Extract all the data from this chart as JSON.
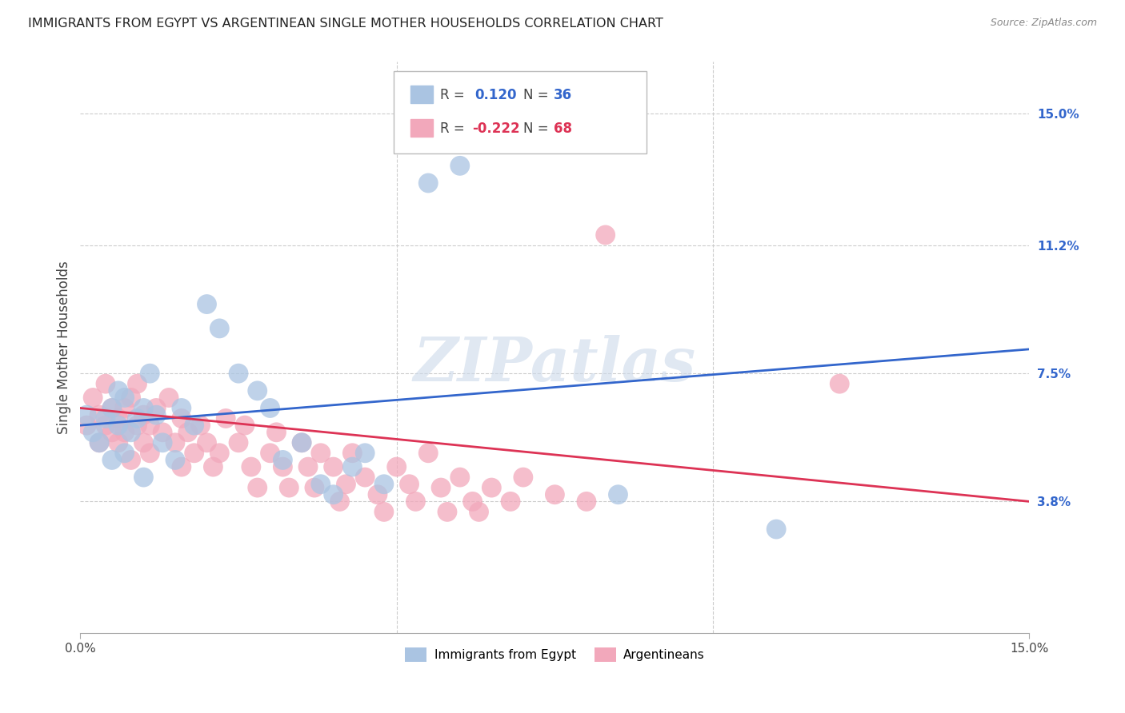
{
  "title": "IMMIGRANTS FROM EGYPT VS ARGENTINEAN SINGLE MOTHER HOUSEHOLDS CORRELATION CHART",
  "source": "Source: ZipAtlas.com",
  "ylabel": "Single Mother Households",
  "xlim": [
    0.0,
    0.15
  ],
  "ylim": [
    0.0,
    0.165
  ],
  "yticks": [
    0.038,
    0.075,
    0.112,
    0.15
  ],
  "ytick_labels": [
    "3.8%",
    "7.5%",
    "11.2%",
    "15.0%"
  ],
  "xtick_labels": [
    "0.0%",
    "15.0%"
  ],
  "blue_R": "0.120",
  "blue_N": "36",
  "pink_R": "-0.222",
  "pink_N": "68",
  "blue_color": "#aac4e2",
  "pink_color": "#f2a8bb",
  "blue_line_color": "#3366cc",
  "pink_line_color": "#dd3355",
  "watermark": "ZIPatlas",
  "blue_legend_label": "Immigrants from Egypt",
  "pink_legend_label": "Argentineans",
  "blue_points_x": [
    0.001,
    0.002,
    0.003,
    0.004,
    0.005,
    0.005,
    0.006,
    0.006,
    0.007,
    0.007,
    0.008,
    0.009,
    0.01,
    0.01,
    0.011,
    0.012,
    0.013,
    0.015,
    0.016,
    0.018,
    0.02,
    0.022,
    0.025,
    0.028,
    0.03,
    0.032,
    0.035,
    0.038,
    0.04,
    0.043,
    0.045,
    0.048,
    0.055,
    0.06,
    0.085,
    0.11
  ],
  "blue_points_y": [
    0.063,
    0.058,
    0.055,
    0.062,
    0.05,
    0.065,
    0.06,
    0.07,
    0.052,
    0.068,
    0.058,
    0.062,
    0.065,
    0.045,
    0.075,
    0.063,
    0.055,
    0.05,
    0.065,
    0.06,
    0.095,
    0.088,
    0.075,
    0.07,
    0.065,
    0.05,
    0.055,
    0.043,
    0.04,
    0.048,
    0.052,
    0.043,
    0.13,
    0.135,
    0.04,
    0.03
  ],
  "pink_points_x": [
    0.001,
    0.002,
    0.003,
    0.003,
    0.004,
    0.004,
    0.005,
    0.005,
    0.006,
    0.006,
    0.007,
    0.007,
    0.008,
    0.008,
    0.009,
    0.009,
    0.01,
    0.01,
    0.011,
    0.011,
    0.012,
    0.013,
    0.014,
    0.015,
    0.016,
    0.016,
    0.017,
    0.018,
    0.019,
    0.02,
    0.021,
    0.022,
    0.023,
    0.025,
    0.026,
    0.027,
    0.028,
    0.03,
    0.031,
    0.032,
    0.033,
    0.035,
    0.036,
    0.037,
    0.038,
    0.04,
    0.041,
    0.042,
    0.043,
    0.045,
    0.047,
    0.048,
    0.05,
    0.052,
    0.053,
    0.055,
    0.057,
    0.058,
    0.06,
    0.062,
    0.063,
    0.065,
    0.068,
    0.07,
    0.075,
    0.08,
    0.083,
    0.12
  ],
  "pink_points_y": [
    0.06,
    0.068,
    0.063,
    0.055,
    0.06,
    0.072,
    0.058,
    0.065,
    0.062,
    0.055,
    0.058,
    0.065,
    0.05,
    0.068,
    0.06,
    0.072,
    0.063,
    0.055,
    0.06,
    0.052,
    0.065,
    0.058,
    0.068,
    0.055,
    0.062,
    0.048,
    0.058,
    0.052,
    0.06,
    0.055,
    0.048,
    0.052,
    0.062,
    0.055,
    0.06,
    0.048,
    0.042,
    0.052,
    0.058,
    0.048,
    0.042,
    0.055,
    0.048,
    0.042,
    0.052,
    0.048,
    0.038,
    0.043,
    0.052,
    0.045,
    0.04,
    0.035,
    0.048,
    0.043,
    0.038,
    0.052,
    0.042,
    0.035,
    0.045,
    0.038,
    0.035,
    0.042,
    0.038,
    0.045,
    0.04,
    0.038,
    0.115,
    0.072
  ]
}
